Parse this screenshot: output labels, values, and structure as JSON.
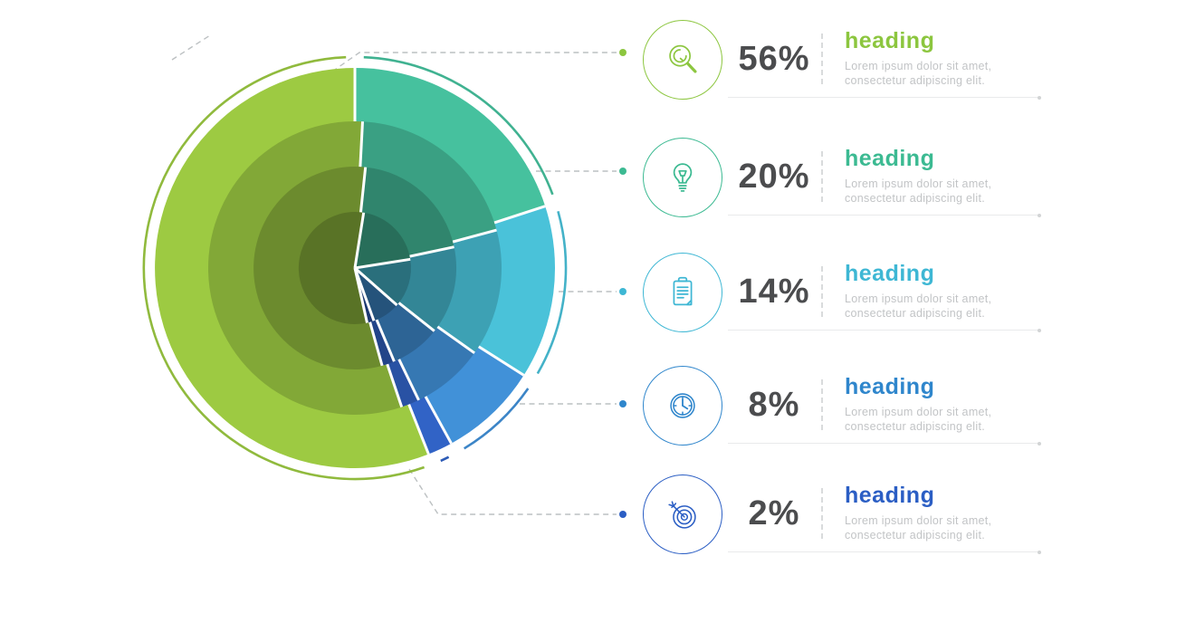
{
  "chart_data": {
    "type": "pie",
    "title": "",
    "legend_position": "right",
    "direction": "clockwise",
    "start_angle_deg": 0,
    "slices": [
      {
        "label": "heading",
        "value": 56,
        "unit": "%",
        "base_color": "#9dca42"
      },
      {
        "label": "heading",
        "value": 20,
        "unit": "%",
        "base_color": "#46c19e"
      },
      {
        "label": "heading",
        "value": 14,
        "unit": "%",
        "base_color": "#4ac2d9"
      },
      {
        "label": "heading",
        "value": 8,
        "unit": "%",
        "base_color": "#4191d8"
      },
      {
        "label": "heading",
        "value": 2,
        "unit": "%",
        "base_color": "#3163c6"
      }
    ],
    "ring_radii": [
      221,
      162,
      112,
      62
    ],
    "ring_shade_factors": [
      1,
      0.83,
      0.69,
      0.57
    ],
    "ring_rotations_deg": [
      0,
      3,
      6,
      9
    ],
    "orbit_radius": 233
  },
  "legend": {
    "items": [
      {
        "icon": "magnifier-icon",
        "percent": "56%",
        "heading": "heading",
        "desc_line1": "Lorem ipsum dolor sit amet,",
        "desc_line2": "consectetur adipiscing elit.",
        "accent": "#8cc63f"
      },
      {
        "icon": "lightbulb-icon",
        "percent": "20%",
        "heading": "heading",
        "desc_line1": "Lorem ipsum dolor sit amet,",
        "desc_line2": "consectetur adipiscing elit.",
        "accent": "#3cba92"
      },
      {
        "icon": "clipboard-icon",
        "percent": "14%",
        "heading": "heading",
        "desc_line1": "Lorem ipsum dolor sit amet,",
        "desc_line2": "consectetur adipiscing elit.",
        "accent": "#3eb7d4"
      },
      {
        "icon": "clock-icon",
        "percent": "8%",
        "heading": "heading",
        "desc_line1": "Lorem ipsum dolor sit amet,",
        "desc_line2": "consectetur adipiscing elit.",
        "accent": "#2f86cc"
      },
      {
        "icon": "target-icon",
        "percent": "2%",
        "heading": "heading",
        "desc_line1": "Lorem ipsum dolor sit amet,",
        "desc_line2": "consectetur adipiscing elit.",
        "accent": "#2b5ec4"
      }
    ]
  },
  "connector_color": "#bcc0c2"
}
